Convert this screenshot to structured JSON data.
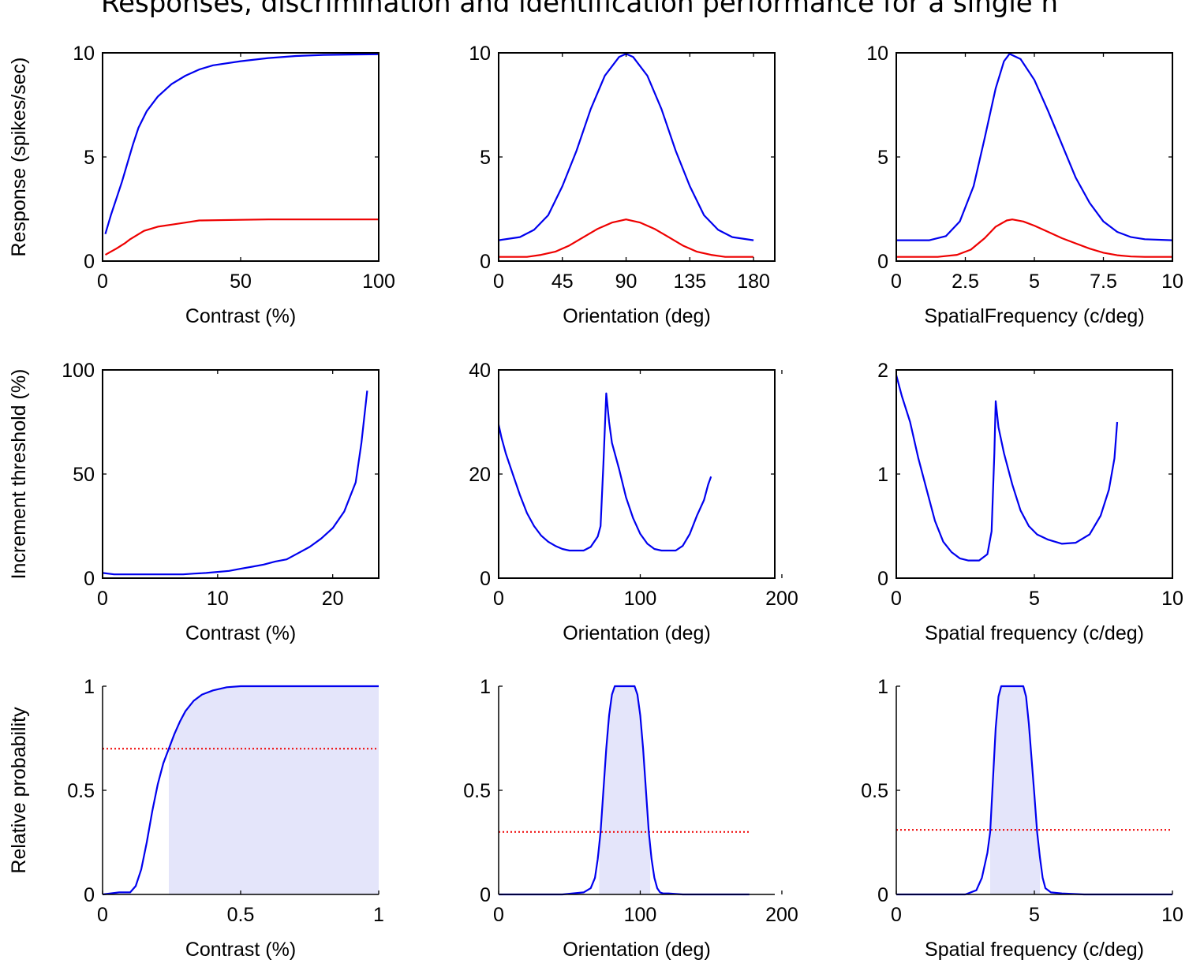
{
  "title": "Responses, discrimination and identification performance for a single n",
  "colors": {
    "high": "#0000ee",
    "low": "#ee0000",
    "fill": "#e4e5fa",
    "threshold": "#ee0000"
  },
  "chart_data": [
    {
      "id": "a",
      "type": "line",
      "xlabel": "Contrast (%)",
      "ylabel": "Response (spikes/sec)",
      "xlim": [
        0,
        100
      ],
      "ylim": [
        0,
        10
      ],
      "xticks": [
        0,
        50,
        100
      ],
      "xtick_labels": [
        "0",
        "50",
        "100"
      ],
      "yticks": [
        0,
        5,
        10
      ],
      "ytick_labels": [
        "0",
        "5",
        "10"
      ],
      "series": [
        {
          "color": "high",
          "x": [
            1,
            3,
            5,
            7,
            9,
            11,
            13,
            16,
            20,
            25,
            30,
            35,
            40,
            50,
            60,
            70,
            80,
            90,
            100
          ],
          "y": [
            1.3,
            2.2,
            3.0,
            3.8,
            4.7,
            5.6,
            6.4,
            7.2,
            7.9,
            8.5,
            8.9,
            9.2,
            9.4,
            9.6,
            9.75,
            9.85,
            9.9,
            9.92,
            9.93
          ]
        },
        {
          "color": "low",
          "x": [
            1,
            3,
            5,
            8,
            10,
            15,
            20,
            25,
            30,
            35,
            50,
            60,
            70,
            80,
            90,
            100
          ],
          "y": [
            0.3,
            0.45,
            0.6,
            0.85,
            1.05,
            1.45,
            1.65,
            1.75,
            1.85,
            1.95,
            1.98,
            2.0,
            2.0,
            2.0,
            2.0,
            2.0
          ]
        }
      ]
    },
    {
      "id": "b",
      "type": "line",
      "xlabel": "Orientation (deg)",
      "ylabel": "",
      "xlim": [
        0,
        195
      ],
      "ylim": [
        0,
        10
      ],
      "xticks": [
        0,
        45,
        90,
        135,
        180
      ],
      "xtick_labels": [
        "0",
        "45",
        "90",
        "135",
        "180"
      ],
      "yticks": [
        0,
        5,
        10
      ],
      "ytick_labels": [
        "0",
        "5",
        "10"
      ],
      "series": [
        {
          "color": "high",
          "x": [
            0,
            15,
            25,
            35,
            45,
            55,
            65,
            75,
            85,
            90,
            95,
            105,
            115,
            125,
            135,
            145,
            155,
            165,
            180
          ],
          "y": [
            1.0,
            1.15,
            1.5,
            2.2,
            3.6,
            5.3,
            7.3,
            8.9,
            9.8,
            9.95,
            9.8,
            8.9,
            7.3,
            5.3,
            3.6,
            2.2,
            1.5,
            1.15,
            1.0
          ]
        },
        {
          "color": "low",
          "x": [
            0,
            20,
            30,
            40,
            50,
            60,
            70,
            80,
            90,
            100,
            110,
            120,
            130,
            140,
            150,
            160,
            180
          ],
          "y": [
            0.2,
            0.2,
            0.3,
            0.45,
            0.75,
            1.15,
            1.55,
            1.85,
            2.0,
            1.85,
            1.55,
            1.15,
            0.75,
            0.45,
            0.3,
            0.2,
            0.2
          ]
        }
      ]
    },
    {
      "id": "c",
      "type": "line",
      "xlabel": "SpatialFrequency  (c/deg)",
      "ylabel": "",
      "xlim": [
        0,
        10
      ],
      "ylim": [
        0,
        10
      ],
      "xticks": [
        0,
        2.5,
        5,
        7.5,
        10
      ],
      "xtick_labels": [
        "0",
        "2.5",
        "5",
        "7.5",
        "10"
      ],
      "yticks": [
        0,
        5,
        10
      ],
      "ytick_labels": [
        "0",
        "5",
        "10"
      ],
      "series": [
        {
          "color": "high",
          "x": [
            0,
            1.2,
            1.8,
            2.3,
            2.8,
            3.2,
            3.6,
            3.9,
            4.1,
            4.5,
            5.0,
            5.5,
            6.0,
            6.5,
            7.0,
            7.5,
            8.0,
            8.5,
            9.0,
            10
          ],
          "y": [
            1.0,
            1.0,
            1.2,
            1.9,
            3.6,
            5.9,
            8.3,
            9.6,
            9.95,
            9.7,
            8.7,
            7.2,
            5.6,
            4.0,
            2.8,
            1.9,
            1.4,
            1.15,
            1.05,
            1.0
          ]
        },
        {
          "color": "low",
          "x": [
            0,
            1.5,
            2.2,
            2.7,
            3.2,
            3.6,
            4.0,
            4.2,
            4.6,
            5.0,
            5.5,
            6.0,
            6.5,
            7.0,
            7.5,
            8.0,
            8.5,
            9.0,
            10
          ],
          "y": [
            0.2,
            0.2,
            0.3,
            0.55,
            1.1,
            1.65,
            1.95,
            2.0,
            1.9,
            1.7,
            1.4,
            1.1,
            0.85,
            0.6,
            0.4,
            0.28,
            0.22,
            0.2,
            0.2
          ]
        }
      ]
    },
    {
      "id": "d",
      "type": "line",
      "xlabel": "Contrast (%)",
      "ylabel": "Increment threshold (%)",
      "xlim": [
        0,
        24
      ],
      "ylim": [
        0,
        100
      ],
      "xticks": [
        0,
        10,
        20
      ],
      "xtick_labels": [
        "0",
        "10",
        "20"
      ],
      "yticks": [
        0,
        50,
        100
      ],
      "ytick_labels": [
        "0",
        "50",
        "100"
      ],
      "series": [
        {
          "color": "high",
          "x": [
            0,
            1,
            3,
            5,
            7,
            8,
            9,
            10,
            11,
            12,
            13,
            14,
            15,
            16,
            17,
            18,
            19,
            20,
            21,
            22,
            22.5,
            23
          ],
          "y": [
            2.5,
            1.8,
            1.8,
            1.8,
            1.8,
            2.2,
            2.5,
            3,
            3.5,
            4.5,
            5.5,
            6.5,
            8,
            9,
            12,
            15,
            19,
            24,
            32,
            46,
            65,
            90
          ]
        }
      ]
    },
    {
      "id": "e",
      "type": "line",
      "xlabel": "Orientation (deg)",
      "ylabel": "",
      "xlim": [
        0,
        195
      ],
      "ylim": [
        0,
        40
      ],
      "xticks": [
        0,
        100,
        200
      ],
      "xtick_labels": [
        "0",
        "100",
        "200"
      ],
      "yticks": [
        0,
        20,
        40
      ],
      "ytick_labels": [
        "0",
        "20",
        "40"
      ],
      "series": [
        {
          "color": "high",
          "x": [
            0,
            2,
            5,
            10,
            15,
            20,
            25,
            30,
            35,
            40,
            45,
            50,
            55,
            60,
            65,
            70,
            72,
            74,
            76,
            78,
            80,
            85,
            90,
            95,
            100,
            105,
            110,
            115,
            120,
            125,
            130,
            135,
            140,
            145,
            148,
            150
          ],
          "y": [
            29.5,
            27,
            24,
            20,
            16,
            12.5,
            10,
            8.2,
            7,
            6.2,
            5.6,
            5.3,
            5.3,
            5.3,
            6,
            8,
            10,
            22,
            35.5,
            30,
            26,
            21,
            15.5,
            11.5,
            8.5,
            6.6,
            5.6,
            5.3,
            5.3,
            5.3,
            6.2,
            8.5,
            12,
            15,
            18,
            19.5
          ]
        }
      ]
    },
    {
      "id": "f",
      "type": "line",
      "xlabel": "Spatial frequency (c/deg)",
      "ylabel": "",
      "xlim": [
        0,
        10
      ],
      "ylim": [
        0,
        2
      ],
      "xticks": [
        0,
        5,
        10
      ],
      "xtick_labels": [
        "0",
        "5",
        "10"
      ],
      "yticks": [
        0,
        1,
        2
      ],
      "ytick_labels": [
        "0",
        "1",
        "2"
      ],
      "series": [
        {
          "color": "high",
          "x": [
            0,
            0.2,
            0.5,
            0.8,
            1.1,
            1.4,
            1.7,
            2.0,
            2.3,
            2.6,
            3.0,
            3.3,
            3.45,
            3.55,
            3.6,
            3.7,
            3.9,
            4.2,
            4.5,
            4.8,
            5.1,
            5.5,
            6.0,
            6.5,
            7.0,
            7.4,
            7.7,
            7.9,
            8.0
          ],
          "y": [
            1.95,
            1.75,
            1.5,
            1.15,
            0.85,
            0.55,
            0.35,
            0.25,
            0.19,
            0.17,
            0.17,
            0.23,
            0.45,
            1.2,
            1.7,
            1.45,
            1.2,
            0.9,
            0.65,
            0.5,
            0.42,
            0.37,
            0.33,
            0.34,
            0.42,
            0.6,
            0.85,
            1.15,
            1.5
          ]
        }
      ]
    },
    {
      "id": "g",
      "type": "area",
      "xlabel": "Contrast (%)",
      "ylabel": "Relative probability",
      "xlim": [
        0,
        1
      ],
      "ylim": [
        0,
        1
      ],
      "xticks": [
        0,
        0.5,
        1
      ],
      "xtick_labels": [
        "0",
        "0.5",
        "1"
      ],
      "yticks": [
        0,
        0.5,
        1
      ],
      "ytick_labels": [
        "0",
        "0.5",
        "1"
      ],
      "threshold": 0.7,
      "threshold_xlim": [
        0,
        1
      ],
      "fill_range": [
        0.24,
        1
      ],
      "series": [
        {
          "color": "high",
          "x": [
            0,
            0.06,
            0.1,
            0.12,
            0.14,
            0.16,
            0.18,
            0.2,
            0.22,
            0.24,
            0.26,
            0.28,
            0.3,
            0.33,
            0.36,
            0.4,
            0.45,
            0.5,
            0.6,
            0.7,
            0.8,
            0.9,
            1.0
          ],
          "y": [
            0,
            0.01,
            0.01,
            0.04,
            0.12,
            0.25,
            0.4,
            0.53,
            0.63,
            0.7,
            0.77,
            0.83,
            0.88,
            0.93,
            0.96,
            0.98,
            0.995,
            1,
            1,
            1,
            1,
            1,
            1
          ]
        }
      ]
    },
    {
      "id": "h",
      "type": "area",
      "xlabel": "Orientation (deg)",
      "ylabel": "",
      "xlim": [
        0,
        195
      ],
      "ylim": [
        0,
        1
      ],
      "xticks": [
        0,
        100,
        200
      ],
      "xtick_labels": [
        "0",
        "100",
        "200"
      ],
      "yticks": [
        0,
        0.5,
        1
      ],
      "ytick_labels": [
        "0",
        "0.5",
        "1"
      ],
      "threshold": 0.3,
      "threshold_xlim": [
        0,
        177
      ],
      "fill_range": [
        71,
        107
      ],
      "series": [
        {
          "color": "high",
          "x": [
            0,
            45,
            60,
            65,
            68,
            70,
            72,
            74,
            76,
            78,
            80,
            82,
            84,
            86,
            88,
            90,
            92,
            94,
            96,
            98,
            100,
            102,
            104,
            106,
            108,
            110,
            112,
            114,
            116,
            120,
            130,
            177
          ],
          "y": [
            0,
            0,
            0.01,
            0.03,
            0.08,
            0.17,
            0.3,
            0.5,
            0.7,
            0.86,
            0.96,
            1,
            1,
            1,
            1,
            1,
            1,
            1,
            1,
            0.96,
            0.86,
            0.7,
            0.5,
            0.3,
            0.17,
            0.08,
            0.03,
            0.01,
            0.005,
            0.005,
            0,
            0
          ]
        }
      ]
    },
    {
      "id": "i",
      "type": "area",
      "xlabel": "Spatial frequency (c/deg)",
      "ylabel": "",
      "xlim": [
        0,
        10
      ],
      "ylim": [
        0,
        1
      ],
      "xticks": [
        0,
        5,
        10
      ],
      "xtick_labels": [
        "0",
        "5",
        "10"
      ],
      "yticks": [
        0,
        0.5,
        1
      ],
      "ytick_labels": [
        "0",
        "0.5",
        "1"
      ],
      "threshold": 0.31,
      "threshold_xlim": [
        0,
        10
      ],
      "fill_range": [
        3.4,
        5.2
      ],
      "series": [
        {
          "color": "high",
          "x": [
            0,
            2.5,
            2.9,
            3.1,
            3.3,
            3.4,
            3.5,
            3.6,
            3.7,
            3.8,
            3.9,
            4.0,
            4.2,
            4.4,
            4.6,
            4.7,
            4.8,
            4.9,
            5.0,
            5.1,
            5.2,
            5.3,
            5.4,
            5.6,
            6.0,
            6.8,
            10
          ],
          "y": [
            0,
            0,
            0.02,
            0.08,
            0.2,
            0.3,
            0.55,
            0.8,
            0.95,
            1,
            1,
            1,
            1,
            1,
            1,
            0.95,
            0.82,
            0.65,
            0.48,
            0.3,
            0.18,
            0.08,
            0.03,
            0.01,
            0.005,
            0,
            0
          ]
        }
      ]
    }
  ]
}
